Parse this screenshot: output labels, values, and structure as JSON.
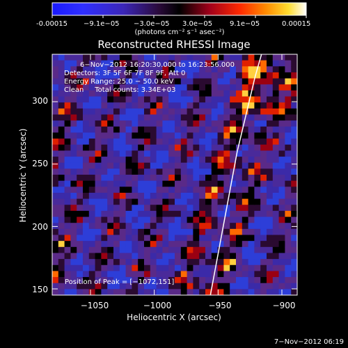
{
  "colorbar": {
    "tick_labels": [
      "-0.00015",
      "−9.1e−05",
      "−3.0e−05",
      "3.0e−05",
      "9.1e−05",
      "0.00015"
    ],
    "unit_label": "(photons cm⁻² s⁻¹ asec⁻²)",
    "range": [
      -0.00015,
      0.00015
    ]
  },
  "title": "Reconstructed RHESSI Image",
  "annotations": {
    "time_range": "6−Nov−2012 16:20:30.000 to 16:23:56.000",
    "detectors": "Detectors: 3F 5F 6F 7F 8F 9F, Att 0",
    "energy": "Energy Range: 25.0 − 50.0 keV",
    "clean": "Clean     Total counts: 3.34E+03",
    "peak": "Position of Peak = [−1072,151]"
  },
  "axes": {
    "xlabel": "Heliocentric X (arcsec)",
    "ylabel": "Heliocentric Y (arcsec)",
    "xlim": [
      -1080,
      -888
    ],
    "ylim": [
      145,
      338
    ],
    "xticks": [
      -1050,
      -1000,
      -950,
      -900
    ],
    "yticks": [
      150,
      200,
      250,
      300
    ],
    "xtick_labels": [
      "−1050",
      "−1000",
      "−950",
      "−900"
    ],
    "ytick_labels": [
      "150",
      "200",
      "250",
      "300"
    ]
  },
  "limb_curve": {
    "points": [
      [
        -956,
        145
      ],
      [
        -946,
        200
      ],
      [
        -935,
        260
      ],
      [
        -921,
        320
      ],
      [
        -916,
        338
      ]
    ]
  },
  "footer": {
    "timestamp": "7−Nov−2012 06:19"
  }
}
